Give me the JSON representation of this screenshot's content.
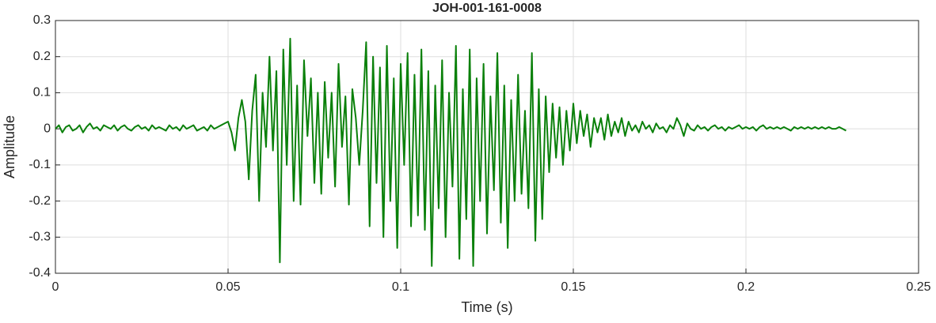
{
  "chart_data": {
    "type": "line",
    "title": "JOH-001-161-0008",
    "xlabel": "Time (s)",
    "ylabel": "Amplitude",
    "xlim": [
      0,
      0.25
    ],
    "xticks": [
      0,
      0.05,
      0.1,
      0.15,
      0.2,
      0.25
    ],
    "ylim": [
      -0.4,
      0.3
    ],
    "yticks": [
      0.3,
      0.2,
      0.1,
      0,
      -0.1,
      -0.2,
      -0.3,
      -0.4
    ],
    "grid": true,
    "x": [
      0,
      0.001,
      0.002,
      0.003,
      0.004,
      0.005,
      0.006,
      0.007,
      0.008,
      0.009,
      0.01,
      0.011,
      0.012,
      0.013,
      0.014,
      0.015,
      0.016,
      0.017,
      0.018,
      0.019,
      0.02,
      0.021,
      0.022,
      0.023,
      0.024,
      0.025,
      0.026,
      0.027,
      0.028,
      0.029,
      0.03,
      0.031,
      0.032,
      0.033,
      0.034,
      0.035,
      0.036,
      0.037,
      0.038,
      0.039,
      0.04,
      0.041,
      0.042,
      0.043,
      0.044,
      0.045,
      0.046,
      0.047,
      0.048,
      0.049,
      0.05,
      0.051,
      0.052,
      0.053,
      0.054,
      0.055,
      0.056,
      0.057,
      0.058,
      0.059,
      0.06,
      0.061,
      0.062,
      0.063,
      0.064,
      0.065,
      0.066,
      0.067,
      0.068,
      0.069,
      0.07,
      0.071,
      0.072,
      0.073,
      0.074,
      0.075,
      0.076,
      0.077,
      0.078,
      0.079,
      0.08,
      0.081,
      0.082,
      0.083,
      0.084,
      0.085,
      0.086,
      0.087,
      0.088,
      0.089,
      0.09,
      0.091,
      0.092,
      0.093,
      0.094,
      0.095,
      0.096,
      0.097,
      0.098,
      0.099,
      0.1,
      0.101,
      0.102,
      0.103,
      0.104,
      0.105,
      0.106,
      0.107,
      0.108,
      0.109,
      0.11,
      0.111,
      0.112,
      0.113,
      0.114,
      0.115,
      0.116,
      0.117,
      0.118,
      0.119,
      0.12,
      0.121,
      0.122,
      0.123,
      0.124,
      0.125,
      0.126,
      0.127,
      0.128,
      0.129,
      0.13,
      0.131,
      0.132,
      0.133,
      0.134,
      0.135,
      0.136,
      0.137,
      0.138,
      0.139,
      0.14,
      0.141,
      0.142,
      0.143,
      0.144,
      0.145,
      0.146,
      0.147,
      0.148,
      0.149,
      0.15,
      0.151,
      0.152,
      0.153,
      0.154,
      0.155,
      0.156,
      0.157,
      0.158,
      0.159,
      0.16,
      0.161,
      0.162,
      0.163,
      0.164,
      0.165,
      0.166,
      0.167,
      0.168,
      0.169,
      0.17,
      0.171,
      0.172,
      0.173,
      0.174,
      0.175,
      0.176,
      0.177,
      0.178,
      0.179,
      0.18,
      0.181,
      0.182,
      0.183,
      0.184,
      0.185,
      0.186,
      0.187,
      0.188,
      0.189,
      0.19,
      0.191,
      0.192,
      0.193,
      0.194,
      0.195,
      0.196,
      0.197,
      0.198,
      0.199,
      0.2,
      0.201,
      0.202,
      0.203,
      0.204,
      0.205,
      0.206,
      0.207,
      0.208,
      0.209,
      0.21,
      0.211,
      0.212,
      0.213,
      0.214,
      0.215,
      0.216,
      0.217,
      0.218,
      0.219,
      0.22,
      0.221,
      0.222,
      0.223,
      0.224,
      0.225,
      0.226,
      0.227,
      0.228,
      0.229
    ],
    "series": [
      {
        "color": "#0a800a",
        "values": [
          0,
          0.01,
          -0.01,
          0.005,
          0.01,
          -0.005,
          0,
          0.01,
          -0.01,
          0.005,
          0.015,
          0,
          0.005,
          -0.005,
          0.01,
          0.005,
          0,
          0.01,
          -0.005,
          0.005,
          0.01,
          0,
          -0.005,
          0.005,
          0.01,
          0,
          0.005,
          -0.005,
          0.01,
          0,
          0.005,
          0,
          -0.005,
          0.01,
          0,
          0.005,
          -0.005,
          0.01,
          0,
          0.005,
          0.01,
          -0.005,
          0,
          0.005,
          -0.005,
          0.01,
          0,
          0.005,
          0.01,
          0.015,
          0.02,
          -0.01,
          -0.06,
          0.03,
          0.08,
          0.02,
          -0.14,
          0.05,
          0.15,
          -0.2,
          0.1,
          -0.05,
          0.2,
          -0.06,
          0.16,
          -0.37,
          0.22,
          -0.1,
          0.25,
          -0.2,
          0.12,
          -0.21,
          0.19,
          -0.02,
          0.14,
          -0.15,
          0.1,
          -0.18,
          0.13,
          -0.08,
          0.1,
          -0.16,
          0.18,
          -0.05,
          0.09,
          -0.21,
          0.11,
          0.03,
          -0.1,
          0.05,
          0.24,
          -0.27,
          0.2,
          -0.15,
          0.17,
          -0.3,
          0.23,
          -0.2,
          0.14,
          -0.33,
          0.18,
          -0.1,
          0.21,
          -0.27,
          0.15,
          -0.24,
          0.22,
          -0.28,
          0.16,
          -0.38,
          0.12,
          -0.22,
          0.19,
          -0.3,
          0.1,
          -0.16,
          0.23,
          -0.36,
          0.11,
          -0.25,
          0.22,
          -0.38,
          0.14,
          -0.2,
          0.18,
          -0.29,
          0.09,
          -0.17,
          0.21,
          -0.26,
          0.12,
          -0.33,
          0.08,
          -0.2,
          0.15,
          -0.18,
          0.05,
          -0.22,
          0.21,
          -0.31,
          0.11,
          -0.25,
          0.09,
          -0.12,
          0.07,
          -0.08,
          0.06,
          -0.1,
          0.05,
          -0.06,
          0.07,
          -0.04,
          0.05,
          -0.02,
          0.04,
          -0.05,
          0.03,
          -0.01,
          0.03,
          -0.03,
          0.04,
          -0.02,
          0.02,
          -0.01,
          0.03,
          -0.02,
          0.02,
          -0.005,
          0.01,
          -0.01,
          0.02,
          0,
          0.01,
          -0.01,
          0.015,
          0,
          0.005,
          -0.01,
          0.01,
          0,
          0.03,
          0.01,
          -0.02,
          0.015,
          0,
          -0.005,
          0.01,
          0,
          0.005,
          -0.005,
          0.005,
          0.01,
          0,
          0.005,
          -0.005,
          0.005,
          0,
          0.005,
          0.01,
          0,
          0.005,
          0,
          0.005,
          -0.005,
          0.005,
          0.01,
          0,
          0.005,
          0,
          0.005,
          0,
          0.005,
          0,
          -0.005,
          0.005,
          0,
          0.005,
          0,
          0.005,
          0,
          0.005,
          0,
          0.005,
          0,
          0.005,
          0,
          0,
          0.005,
          0,
          -0.005
        ]
      }
    ]
  }
}
